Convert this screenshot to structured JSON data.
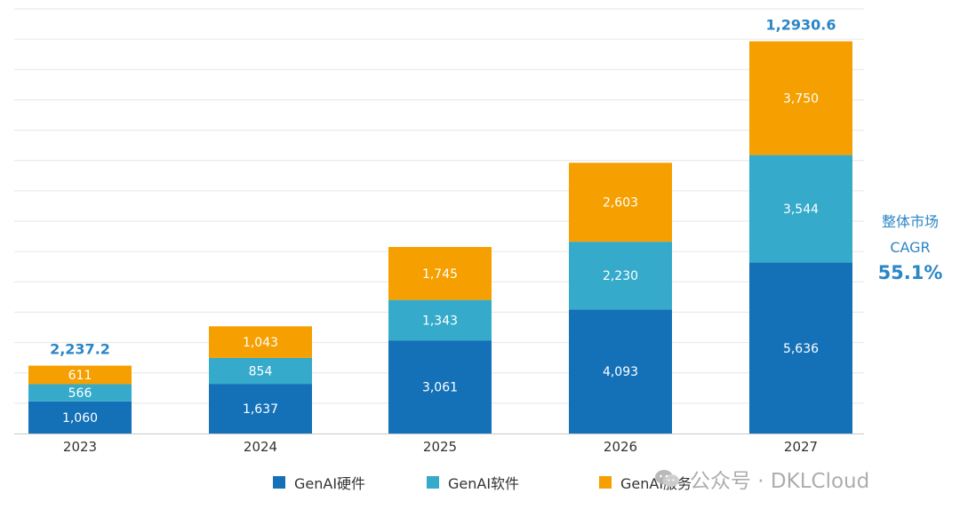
{
  "colors": {
    "hardware": "#1471b8",
    "software": "#35aacb",
    "services": "#f5a000",
    "grid": "#e6e6e6",
    "axis": "#c8c8c8",
    "total_text": "#2b86c7",
    "inside_text": "#ffffff",
    "tick_text": "#333333"
  },
  "side_note": {
    "line1": "整体市场",
    "line2": "CAGR",
    "line3": "55.1%"
  },
  "legend": {
    "items": [
      {
        "label": "GenAI硬件",
        "color": "#1471b8"
      },
      {
        "label": "GenAI软件",
        "color": "#35aacb"
      },
      {
        "label": "GenAI服务",
        "color": "#f5a000"
      }
    ]
  },
  "watermark": {
    "text": "公众号 · DKLCloud",
    "icon": "wechat-icon"
  },
  "chart_data": {
    "type": "bar",
    "stacked": true,
    "categories": [
      "2023",
      "2024",
      "2025",
      "2026",
      "2027"
    ],
    "series": [
      {
        "name": "GenAI硬件",
        "values": [
          1060,
          1637,
          3061,
          4093,
          5636
        ],
        "labels": [
          "1,060",
          "1,637",
          "3,061",
          "4,093",
          "5,636"
        ]
      },
      {
        "name": "GenAI软件",
        "values": [
          566,
          854,
          1343,
          2230,
          3544
        ],
        "labels": [
          "566",
          "854",
          "1,343",
          "2,230",
          "3,544"
        ]
      },
      {
        "name": "GenAI服务",
        "values": [
          611,
          1043,
          1745,
          2603,
          3750
        ],
        "labels": [
          "611",
          "1,043",
          "1,745",
          "2,603",
          "3,750"
        ]
      }
    ],
    "totals": [
      "2,237.2",
      "",
      "",
      "",
      "1,2930.6"
    ],
    "ylim": [
      0,
      14000
    ],
    "grid": true,
    "legend_position": "bottom-center",
    "title": "",
    "xlabel": "",
    "ylabel": ""
  }
}
